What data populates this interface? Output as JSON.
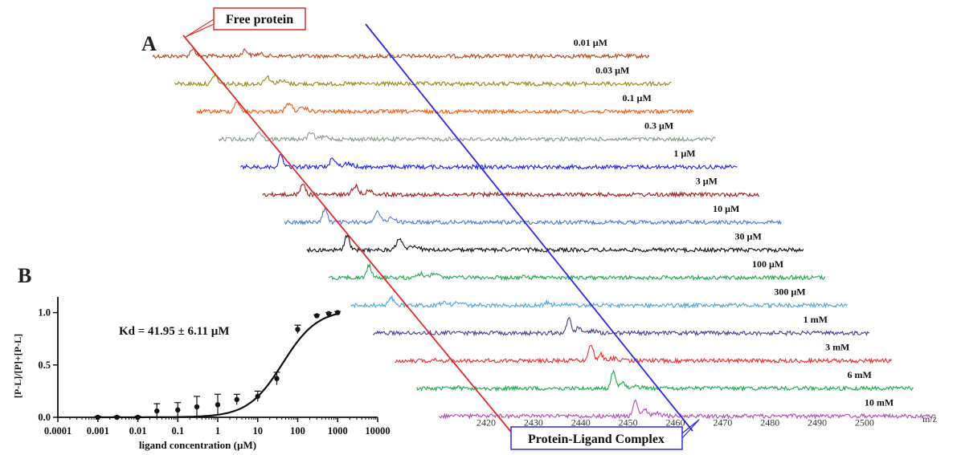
{
  "chart_data": [
    {
      "type": "line",
      "panel_label": "A",
      "xlabel": "m/z",
      "x_ticks": [
        2420,
        2430,
        2440,
        2450,
        2460,
        2470,
        2480,
        2490,
        2500
      ],
      "xlim": [
        2410,
        2515
      ],
      "annotations": {
        "free": "Free protein",
        "complex": "Protein-Ligand Complex"
      },
      "peaks": {
        "free_mz": 2418.5,
        "complex_mz": 2451.5
      },
      "series": [
        {
          "name": "0.01 µM",
          "color": "#b5431a",
          "free_h": 0.55,
          "complex_h": 0.0
        },
        {
          "name": "0.03 µM",
          "color": "#8f8a12",
          "free_h": 0.65,
          "complex_h": 0.0
        },
        {
          "name": "0.1 µM",
          "color": "#f55b14",
          "free_h": 0.75,
          "complex_h": 0.0
        },
        {
          "name": "0.3 µM",
          "color": "#8a9a8a",
          "free_h": 0.55,
          "complex_h": 0.0
        },
        {
          "name": "1 µM",
          "color": "#1a22e8",
          "free_h": 0.8,
          "complex_h": 0.0
        },
        {
          "name": "3 µM",
          "color": "#9e1a1a",
          "free_h": 0.8,
          "complex_h": 0.0
        },
        {
          "name": "10 µM",
          "color": "#4a78e2",
          "free_h": 0.95,
          "complex_h": 0.0
        },
        {
          "name": "30 µM",
          "color": "#111111",
          "free_h": 1.0,
          "complex_h": 0.05
        },
        {
          "name": "100 µM",
          "color": "#1ea850",
          "free_h": 0.85,
          "complex_h": 0.05
        },
        {
          "name": "300 µM",
          "color": "#4aa4d6",
          "free_h": 0.6,
          "complex_h": 0.2
        },
        {
          "name": "1 mM",
          "color": "#4a3a8e",
          "free_h": 0.05,
          "complex_h": 0.9
        },
        {
          "name": "3 mM",
          "color": "#f02a2a",
          "free_h": 0.05,
          "complex_h": 1.0
        },
        {
          "name": "6 mM",
          "color": "#1aa84a",
          "free_h": 0.05,
          "complex_h": 1.0
        },
        {
          "name": "10 mM",
          "color": "#b04ab0",
          "free_h": 0.05,
          "complex_h": 1.0
        }
      ]
    },
    {
      "type": "scatter",
      "panel_label": "B",
      "xlabel": "ligand concentration (µM)",
      "ylabel": "[P-L]/[P]+[P-L]",
      "x_scale": "log",
      "xlim": [
        0.0001,
        10000
      ],
      "ylim": [
        0,
        1.15
      ],
      "x_tick_labels": [
        "0.0001",
        "0.001",
        "0.01",
        "0.1",
        "1",
        "10",
        "100",
        "1000",
        "10000"
      ],
      "y_tick_labels": [
        "0.0",
        "0.5",
        "1.0"
      ],
      "annotation": "Kd = 41.95 ± 6.11 µM",
      "points": [
        {
          "x": 0.001,
          "y": 0.0,
          "err": 0.01
        },
        {
          "x": 0.003,
          "y": 0.0,
          "err": 0.01
        },
        {
          "x": 0.01,
          "y": 0.0,
          "err": 0.01
        },
        {
          "x": 0.03,
          "y": 0.06,
          "err": 0.07
        },
        {
          "x": 0.1,
          "y": 0.07,
          "err": 0.07
        },
        {
          "x": 0.3,
          "y": 0.1,
          "err": 0.1
        },
        {
          "x": 1,
          "y": 0.12,
          "err": 0.1
        },
        {
          "x": 3,
          "y": 0.17,
          "err": 0.05
        },
        {
          "x": 10,
          "y": 0.2,
          "err": 0.05
        },
        {
          "x": 30,
          "y": 0.37,
          "err": 0.06
        },
        {
          "x": 100,
          "y": 0.84,
          "err": 0.04
        },
        {
          "x": 300,
          "y": 0.97,
          "err": 0.01
        },
        {
          "x": 600,
          "y": 0.99,
          "err": 0.01
        },
        {
          "x": 1000,
          "y": 1.0,
          "err": 0.01
        }
      ],
      "fit": {
        "kd": 41.95,
        "hill": 1.0,
        "max": 1.03
      }
    }
  ]
}
